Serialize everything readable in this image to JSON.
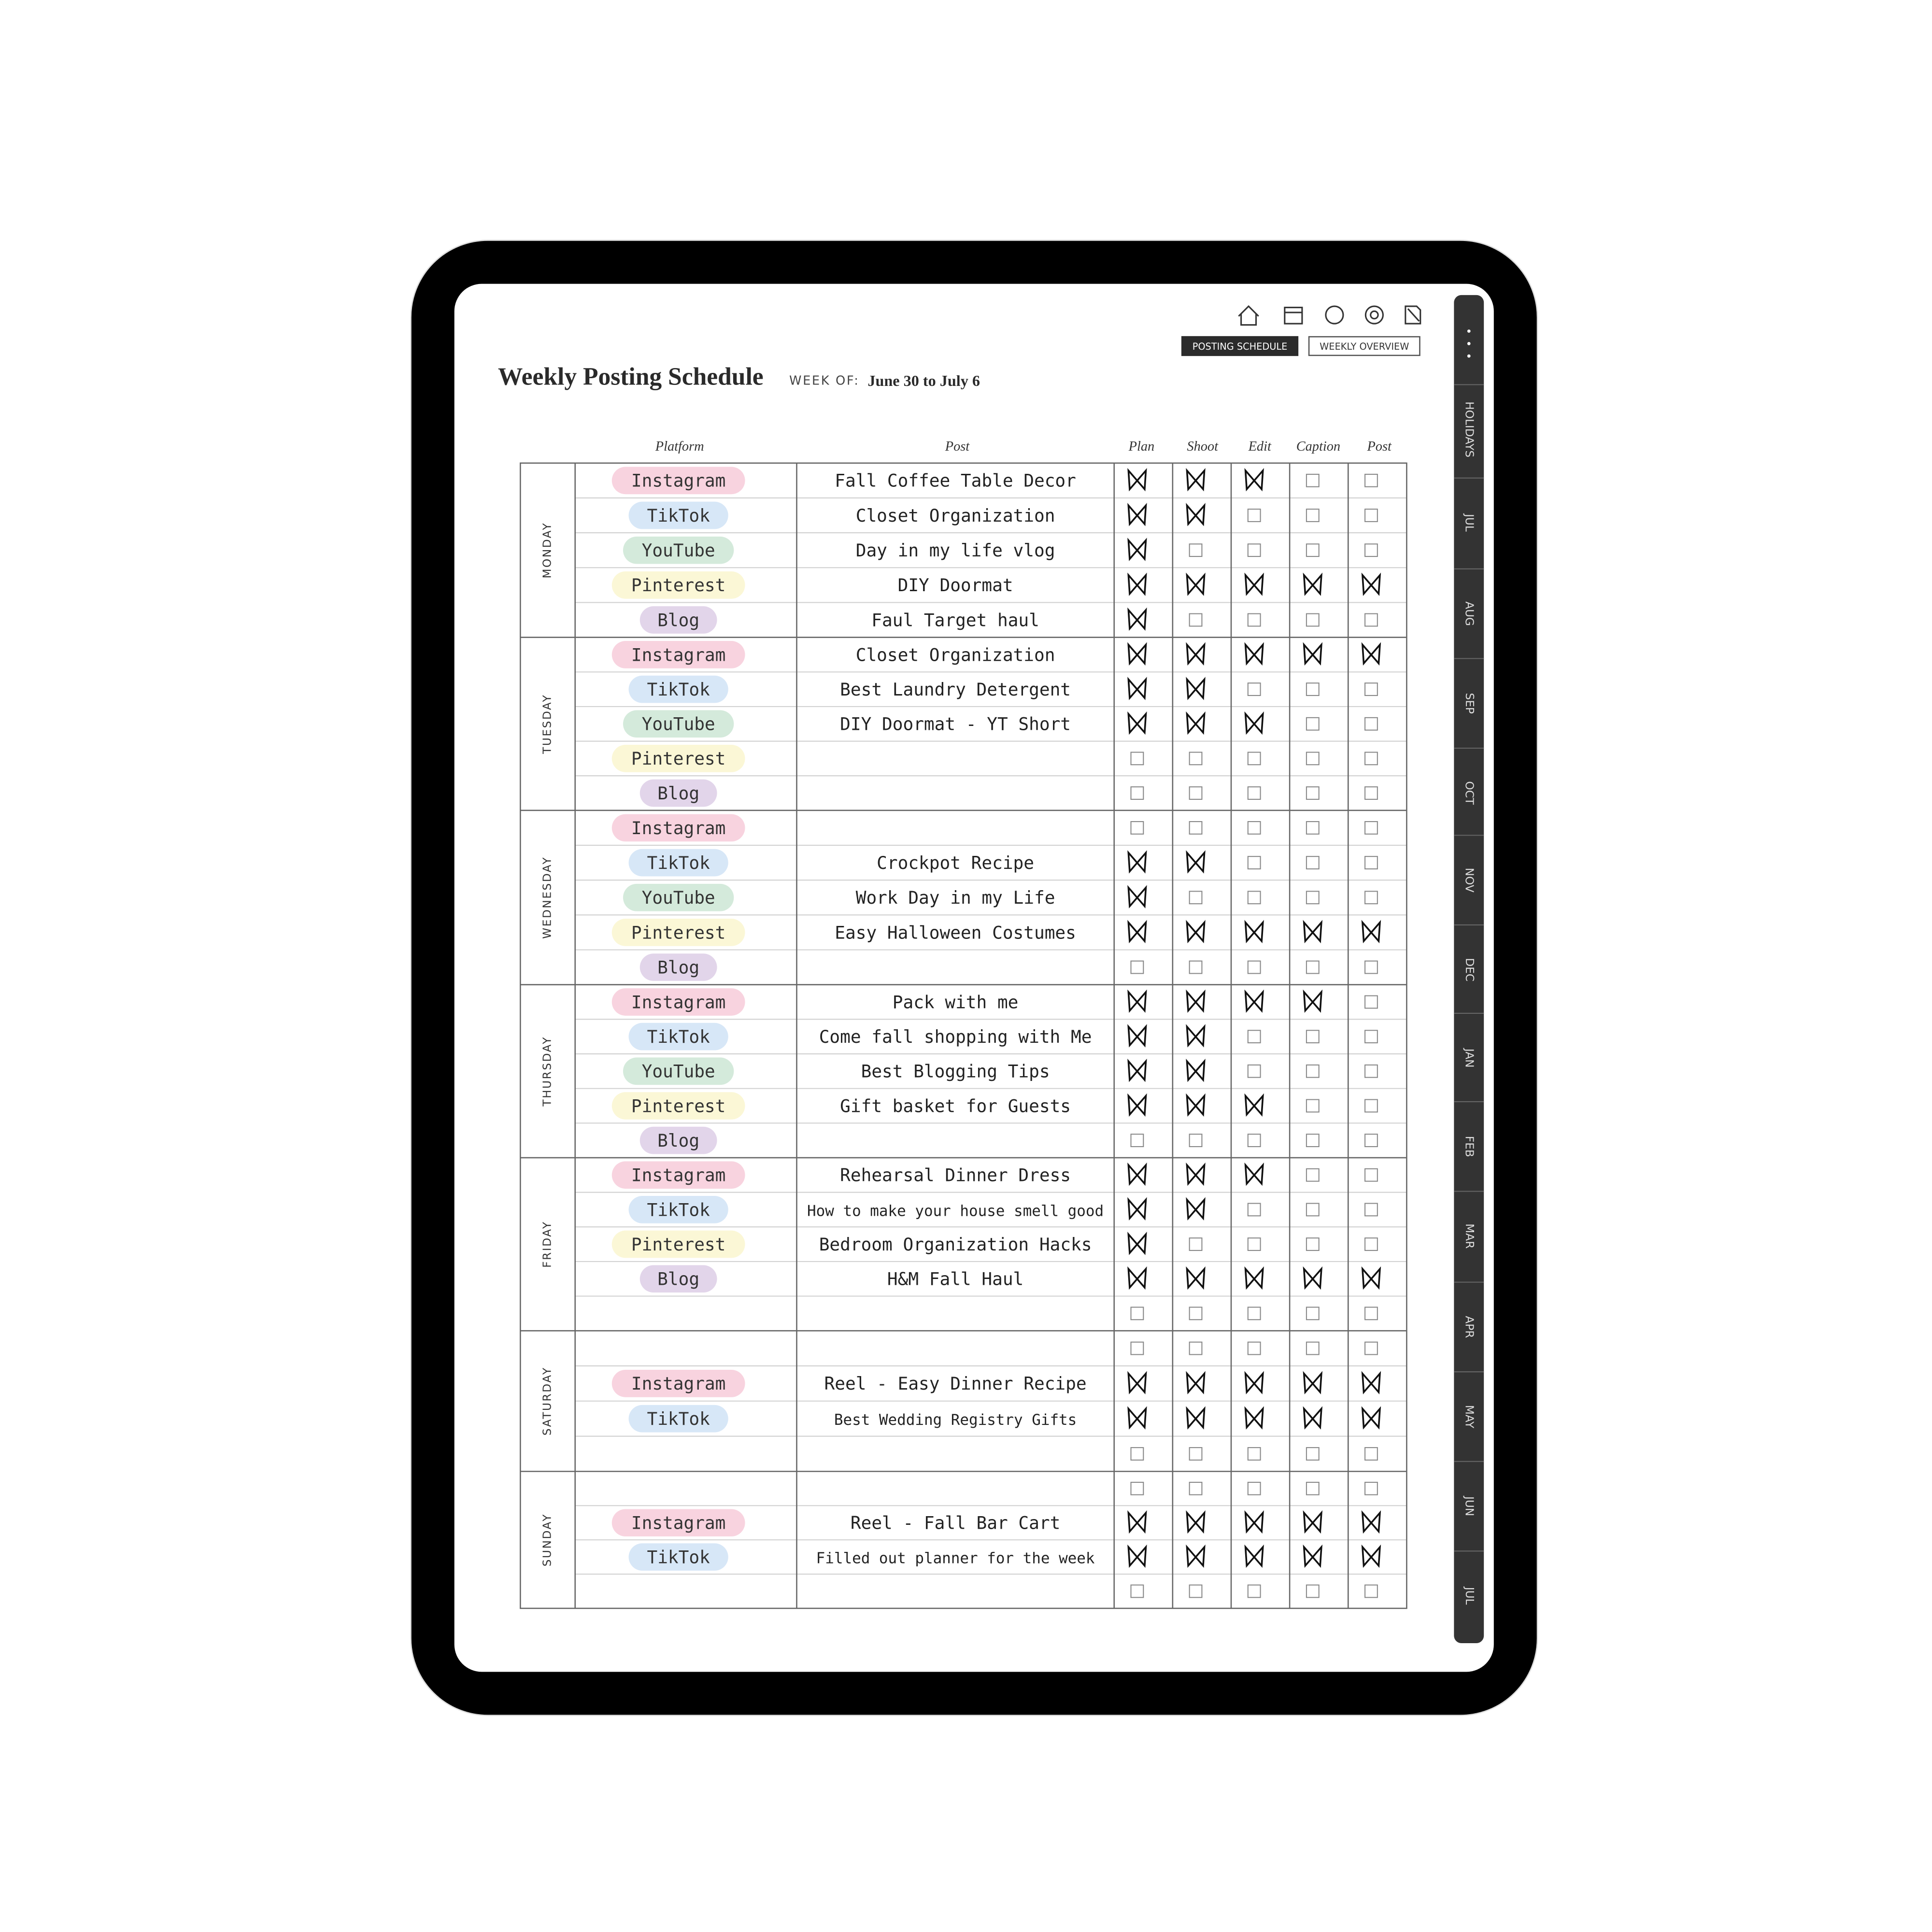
{
  "header": {
    "title": "Weekly Posting Schedule",
    "week_of_label": "WEEK OF:",
    "week_dates": "June 30 to July 6"
  },
  "nav": {
    "active": "POSTING SCHEDULE",
    "other": "WEEKLY OVERVIEW"
  },
  "tabs": [
    "HOLIDAYS",
    "JUL",
    "AUG",
    "SEP",
    "OCT",
    "NOV",
    "DEC",
    "JAN",
    "FEB",
    "MAR",
    "APR",
    "MAY",
    "JUN",
    "JUL"
  ],
  "platform_colors": {
    "Instagram": "#f8d3df",
    "TikTok": "#d7e7f7",
    "YouTube": "#d4eadb",
    "Pinterest": "#fbf7d6",
    "Blog": "#e2d5ea"
  },
  "table": {
    "columns": [
      "Platform",
      "Post",
      "Plan",
      "Shoot",
      "Edit",
      "Caption",
      "Post"
    ],
    "days": [
      {
        "day": "MONDAY",
        "rows": [
          {
            "platform": "Instagram",
            "post": "Fall Coffee Table Decor",
            "checks": [
              true,
              true,
              true,
              false,
              false
            ]
          },
          {
            "platform": "TikTok",
            "post": "Closet Organization",
            "checks": [
              true,
              true,
              false,
              false,
              false
            ]
          },
          {
            "platform": "YouTube",
            "post": "Day in my life vlog",
            "checks": [
              true,
              false,
              false,
              false,
              false
            ]
          },
          {
            "platform": "Pinterest",
            "post": "DIY Doormat",
            "checks": [
              true,
              true,
              true,
              true,
              true
            ]
          },
          {
            "platform": "Blog",
            "post": "Faul Target haul",
            "checks": [
              true,
              false,
              false,
              false,
              false
            ]
          }
        ]
      },
      {
        "day": "TUESDAY",
        "rows": [
          {
            "platform": "Instagram",
            "post": "Closet Organization",
            "checks": [
              true,
              true,
              true,
              true,
              true
            ]
          },
          {
            "platform": "TikTok",
            "post": "Best Laundry Detergent",
            "checks": [
              true,
              true,
              false,
              false,
              false
            ]
          },
          {
            "platform": "YouTube",
            "post": "DIY Doormat - YT Short",
            "checks": [
              true,
              true,
              true,
              false,
              false
            ]
          },
          {
            "platform": "Pinterest",
            "post": null,
            "checks": [
              false,
              false,
              false,
              false,
              false
            ]
          },
          {
            "platform": "Blog",
            "post": null,
            "checks": [
              false,
              false,
              false,
              false,
              false
            ]
          }
        ]
      },
      {
        "day": "WEDNESDAY",
        "rows": [
          {
            "platform": "Instagram",
            "post": null,
            "checks": [
              false,
              false,
              false,
              false,
              false
            ]
          },
          {
            "platform": "TikTok",
            "post": "Crockpot Recipe",
            "checks": [
              true,
              true,
              false,
              false,
              false
            ]
          },
          {
            "platform": "YouTube",
            "post": "Work Day in my Life",
            "checks": [
              true,
              false,
              false,
              false,
              false
            ]
          },
          {
            "platform": "Pinterest",
            "post": "Easy Halloween Costumes",
            "checks": [
              true,
              true,
              true,
              true,
              true
            ]
          },
          {
            "platform": "Blog",
            "post": null,
            "checks": [
              false,
              false,
              false,
              false,
              false
            ]
          }
        ]
      },
      {
        "day": "THURSDAY",
        "rows": [
          {
            "platform": "Instagram",
            "post": "Pack with me",
            "checks": [
              true,
              true,
              true,
              true,
              false
            ]
          },
          {
            "platform": "TikTok",
            "post": "Come fall shopping with Me",
            "checks": [
              true,
              true,
              false,
              false,
              false
            ]
          },
          {
            "platform": "YouTube",
            "post": "Best Blogging Tips",
            "checks": [
              true,
              true,
              false,
              false,
              false
            ]
          },
          {
            "platform": "Pinterest",
            "post": "Gift basket for Guests",
            "checks": [
              true,
              true,
              true,
              false,
              false
            ]
          },
          {
            "platform": "Blog",
            "post": null,
            "checks": [
              false,
              false,
              false,
              false,
              false
            ]
          }
        ]
      },
      {
        "day": "FRIDAY",
        "rows": [
          {
            "platform": "Instagram",
            "post": "Rehearsal Dinner Dress",
            "checks": [
              true,
              true,
              true,
              false,
              false
            ]
          },
          {
            "platform": "TikTok",
            "post": "How to make your house smell good",
            "checks": [
              true,
              true,
              false,
              false,
              false
            ]
          },
          {
            "platform": "Pinterest",
            "post": "Bedroom Organization Hacks",
            "checks": [
              true,
              false,
              false,
              false,
              false
            ]
          },
          {
            "platform": "Blog",
            "post": "H&M Fall Haul",
            "checks": [
              true,
              true,
              true,
              true,
              true
            ]
          },
          {
            "platform": null,
            "post": null,
            "checks": [
              false,
              false,
              false,
              false,
              false
            ]
          }
        ]
      },
      {
        "day": "SATURDAY",
        "rows": [
          {
            "platform": null,
            "post": null,
            "checks": [
              false,
              false,
              false,
              false,
              false
            ]
          },
          {
            "platform": "Instagram",
            "post": "Reel - Easy Dinner Recipe",
            "checks": [
              true,
              true,
              true,
              true,
              true
            ]
          },
          {
            "platform": "TikTok",
            "post": "Best Wedding Registry Gifts",
            "checks": [
              true,
              true,
              true,
              true,
              true
            ]
          },
          {
            "platform": null,
            "post": null,
            "checks": [
              false,
              false,
              false,
              false,
              false
            ]
          }
        ]
      },
      {
        "day": "SUNDAY",
        "rows": [
          {
            "platform": null,
            "post": null,
            "checks": [
              false,
              false,
              false,
              false,
              false
            ]
          },
          {
            "platform": "Instagram",
            "post": "Reel - Fall Bar Cart",
            "checks": [
              true,
              true,
              true,
              true,
              true
            ]
          },
          {
            "platform": "TikTok",
            "post": "Filled out planner for the week",
            "checks": [
              true,
              true,
              true,
              true,
              true
            ]
          },
          {
            "platform": null,
            "post": null,
            "checks": [
              false,
              false,
              false,
              false,
              false
            ]
          }
        ]
      }
    ]
  }
}
